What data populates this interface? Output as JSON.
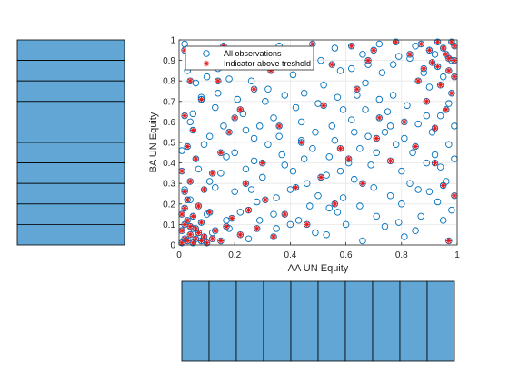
{
  "colors": {
    "observation_marker": "#0072BD",
    "indicator_marker": "#E41A1C",
    "hist_bar_fill": "#62A6D5",
    "hist_bar_edge": "#000000",
    "grid": "#E6E6E6",
    "axis": "#262626"
  },
  "chart_data": [
    {
      "type": "scatter",
      "xlabel": "AA UN Equity",
      "ylabel": "BA UN Equity",
      "xlim": [
        0,
        1
      ],
      "ylim": [
        0,
        1
      ],
      "xticks": [
        "0",
        "0.2",
        "0.4",
        "0.6",
        "0.8",
        "1"
      ],
      "yticks": [
        "0",
        "0.1",
        "0.2",
        "0.3",
        "0.4",
        "0.5",
        "0.6",
        "0.7",
        "0.8",
        "0.9",
        "1"
      ],
      "grid": true,
      "legend_position": "top-left",
      "series": [
        {
          "name": "All observations",
          "marker": "circle",
          "points": [
            [
              0.02,
              0.98
            ],
            [
              0.05,
              0.64
            ],
            [
              0.08,
              0.72
            ],
            [
              0.11,
              0.31
            ],
            [
              0.14,
              0.86
            ],
            [
              0.17,
              0.12
            ],
            [
              0.2,
              0.45
            ],
            [
              0.23,
              0.92
            ],
            [
              0.26,
              0.27
            ],
            [
              0.29,
              0.58
            ],
            [
              0.32,
              0.76
            ],
            [
              0.35,
              0.08
            ],
            [
              0.38,
              0.39
            ],
            [
              0.41,
              0.83
            ],
            [
              0.44,
              0.51
            ],
            [
              0.47,
              0.19
            ],
            [
              0.5,
              0.69
            ],
            [
              0.53,
              0.34
            ],
            [
              0.56,
              0.96
            ],
            [
              0.59,
              0.23
            ],
            [
              0.62,
              0.61
            ],
            [
              0.65,
              0.47
            ],
            [
              0.68,
              0.88
            ],
            [
              0.71,
              0.14
            ],
            [
              0.74,
              0.55
            ],
            [
              0.77,
              0.73
            ],
            [
              0.8,
              0.36
            ],
            [
              0.83,
              0.91
            ],
            [
              0.86,
              0.27
            ],
            [
              0.89,
              0.63
            ],
            [
              0.92,
              0.44
            ],
            [
              0.95,
              0.82
            ],
            [
              0.98,
              0.17
            ],
            [
              0.04,
              0.22
            ],
            [
              0.09,
              0.49
            ],
            [
              0.13,
              0.67
            ],
            [
              0.18,
              0.81
            ],
            [
              0.22,
              0.16
            ],
            [
              0.27,
              0.41
            ],
            [
              0.31,
              0.95
            ],
            [
              0.36,
              0.53
            ],
            [
              0.4,
              0.27
            ],
            [
              0.45,
              0.74
            ],
            [
              0.49,
              0.06
            ],
            [
              0.54,
              0.43
            ],
            [
              0.58,
              0.85
            ],
            [
              0.63,
              0.32
            ],
            [
              0.67,
              0.66
            ],
            [
              0.72,
              0.98
            ],
            [
              0.76,
              0.24
            ],
            [
              0.81,
              0.52
            ],
            [
              0.85,
              0.07
            ],
            [
              0.9,
              0.77
            ],
            [
              0.94,
              0.38
            ],
            [
              0.99,
              0.58
            ],
            [
              0.03,
              0.85
            ],
            [
              0.07,
              0.37
            ],
            [
              0.12,
              0.06
            ],
            [
              0.16,
              0.58
            ],
            [
              0.21,
              0.71
            ],
            [
              0.25,
              0.03
            ],
            [
              0.3,
              0.33
            ],
            [
              0.34,
              0.62
            ],
            [
              0.39,
              0.89
            ],
            [
              0.43,
              0.12
            ],
            [
              0.48,
              0.47
            ],
            [
              0.52,
              0.78
            ],
            [
              0.57,
              0.16
            ],
            [
              0.61,
              0.4
            ],
            [
              0.66,
              0.93
            ],
            [
              0.7,
              0.28
            ],
            [
              0.75,
              0.65
            ],
            [
              0.79,
              0.11
            ],
            [
              0.84,
              0.45
            ],
            [
              0.88,
              0.84
            ],
            [
              0.93,
              0.21
            ],
            [
              0.97,
              0.69
            ],
            [
              0.01,
              0.46
            ],
            [
              0.06,
              0.79
            ],
            [
              0.1,
              0.15
            ],
            [
              0.15,
              0.35
            ],
            [
              0.19,
              0.93
            ],
            [
              0.24,
              0.56
            ],
            [
              0.28,
              0.21
            ],
            [
              0.33,
              0.87
            ],
            [
              0.37,
              0.44
            ],
            [
              0.42,
              0.67
            ],
            [
              0.46,
              0.3
            ],
            [
              0.51,
              0.9
            ],
            [
              0.55,
              0.58
            ],
            [
              0.6,
              0.1
            ],
            [
              0.64,
              0.73
            ],
            [
              0.69,
              0.39
            ],
            [
              0.73,
              0.84
            ],
            [
              0.78,
              0.49
            ],
            [
              0.82,
              0.68
            ],
            [
              0.87,
              0.14
            ],
            [
              0.91,
              0.55
            ],
            [
              0.96,
              0.31
            ],
            [
              0.02,
              0.27
            ],
            [
              0.05,
              0.08
            ],
            [
              0.11,
              0.53
            ],
            [
              0.14,
              0.74
            ],
            [
              0.2,
              0.26
            ],
            [
              0.23,
              0.64
            ],
            [
              0.29,
              0.12
            ],
            [
              0.32,
              0.49
            ],
            [
              0.38,
              0.73
            ],
            [
              0.41,
              0.36
            ],
            [
              0.47,
              0.91
            ],
            [
              0.5,
              0.24
            ],
            [
              0.56,
              0.51
            ],
            [
              0.59,
              0.66
            ],
            [
              0.65,
              0.19
            ],
            [
              0.68,
              0.53
            ],
            [
              0.74,
              0.09
            ],
            [
              0.77,
              0.88
            ],
            [
              0.83,
              0.3
            ],
            [
              0.86,
              0.59
            ],
            [
              0.92,
              0.93
            ],
            [
              0.95,
              0.12
            ],
            [
              0.99,
              0.42
            ],
            [
              0.08,
              0.95
            ],
            [
              0.17,
              0.43
            ],
            [
              0.26,
              0.8
            ],
            [
              0.35,
              0.23
            ],
            [
              0.44,
              0.6
            ],
            [
              0.53,
              0.05
            ],
            [
              0.62,
              0.86
            ],
            [
              0.71,
              0.45
            ],
            [
              0.8,
              0.2
            ],
            [
              0.89,
              0.4
            ],
            [
              0.98,
              0.9
            ],
            [
              0.13,
              0.28
            ],
            [
              0.22,
              0.89
            ],
            [
              0.31,
              0.7
            ],
            [
              0.4,
              0.1
            ],
            [
              0.49,
              0.55
            ],
            [
              0.58,
              0.36
            ],
            [
              0.67,
              0.79
            ],
            [
              0.76,
              0.58
            ],
            [
              0.85,
              0.97
            ],
            [
              0.94,
              0.63
            ],
            [
              0.04,
              0.6
            ],
            [
              0.18,
              0.08
            ],
            [
              0.27,
              0.52
            ],
            [
              0.36,
              0.97
            ],
            [
              0.45,
              0.42
            ],
            [
              0.54,
              0.18
            ],
            [
              0.63,
              0.55
            ],
            [
              0.72,
              0.71
            ],
            [
              0.81,
              0.04
            ],
            [
              0.9,
              0.26
            ],
            [
              0.97,
              0.49
            ],
            [
              0.1,
              0.82
            ],
            [
              0.34,
              0.15
            ],
            [
              0.57,
              0.72
            ],
            [
              0.79,
              0.92
            ],
            [
              0.24,
              0.37
            ],
            [
              0.66,
              0.02
            ]
          ]
        },
        {
          "name": "Indicator above treshold",
          "marker": "asterisk",
          "points": [
            [
              0.01,
              0.01
            ],
            [
              0.02,
              0.03
            ],
            [
              0.03,
              0.02
            ],
            [
              0.04,
              0.05
            ],
            [
              0.05,
              0.01
            ],
            [
              0.01,
              0.07
            ],
            [
              0.02,
              0.1
            ],
            [
              0.06,
              0.03
            ],
            [
              0.03,
              0.12
            ],
            [
              0.07,
              0.06
            ],
            [
              0.08,
              0.02
            ],
            [
              0.01,
              0.15
            ],
            [
              0.04,
              0.09
            ],
            [
              0.09,
              0.04
            ],
            [
              0.02,
              0.18
            ],
            [
              0.06,
              0.08
            ],
            [
              0.1,
              0.01
            ],
            [
              0.05,
              0.14
            ],
            [
              0.12,
              0.03
            ],
            [
              0.03,
              0.22
            ],
            [
              0.08,
              0.11
            ],
            [
              0.13,
              0.07
            ],
            [
              0.02,
              0.26
            ],
            [
              0.11,
              0.16
            ],
            [
              0.15,
              0.02
            ],
            [
              0.04,
              0.31
            ],
            [
              0.07,
              0.19
            ],
            [
              0.17,
              0.09
            ],
            [
              0.01,
              0.36
            ],
            [
              0.19,
              0.13
            ],
            [
              0.06,
              0.42
            ],
            [
              0.22,
              0.05
            ],
            [
              0.09,
              0.27
            ],
            [
              0.25,
              0.17
            ],
            [
              0.03,
              0.48
            ],
            [
              0.28,
              0.08
            ],
            [
              0.12,
              0.35
            ],
            [
              0.31,
              0.22
            ],
            [
              0.05,
              0.56
            ],
            [
              0.34,
              0.04
            ],
            [
              0.15,
              0.45
            ],
            [
              0.38,
              0.15
            ],
            [
              0.02,
              0.63
            ],
            [
              0.42,
              0.28
            ],
            [
              0.18,
              0.55
            ],
            [
              0.46,
              0.1
            ],
            [
              0.08,
              0.71
            ],
            [
              0.51,
              0.33
            ],
            [
              0.22,
              0.66
            ],
            [
              0.56,
              0.2
            ],
            [
              0.04,
              0.8
            ],
            [
              0.61,
              0.42
            ],
            [
              0.27,
              0.76
            ],
            [
              0.66,
              0.3
            ],
            [
              0.11,
              0.88
            ],
            [
              0.71,
              0.52
            ],
            [
              0.33,
              0.85
            ],
            [
              0.76,
              0.41
            ],
            [
              0.02,
              0.95
            ],
            [
              0.81,
              0.6
            ],
            [
              0.4,
              0.93
            ],
            [
              0.85,
              0.48
            ],
            [
              0.16,
              0.97
            ],
            [
              0.89,
              0.7
            ],
            [
              0.48,
              0.98
            ],
            [
              0.92,
              0.57
            ],
            [
              0.62,
              0.97
            ],
            [
              0.94,
              0.78
            ],
            [
              0.7,
              0.95
            ],
            [
              0.96,
              0.66
            ],
            [
              0.78,
              0.99
            ],
            [
              0.97,
              0.85
            ],
            [
              0.83,
              0.93
            ],
            [
              0.98,
              0.74
            ],
            [
              0.87,
              0.98
            ],
            [
              0.99,
              0.9
            ],
            [
              0.9,
              0.95
            ],
            [
              0.96,
              0.93
            ],
            [
              0.93,
              0.99
            ],
            [
              0.99,
              0.97
            ],
            [
              0.95,
              0.96
            ],
            [
              0.98,
              0.99
            ],
            [
              0.97,
              0.91
            ],
            [
              0.91,
              0.89
            ],
            [
              0.88,
              0.86
            ],
            [
              0.99,
              0.82
            ],
            [
              0.86,
              0.8
            ],
            [
              0.93,
              0.87
            ],
            [
              0.97,
              0.02
            ],
            [
              0.99,
              0.24
            ],
            [
              0.92,
              0.4
            ],
            [
              0.95,
              0.29
            ],
            [
              0.2,
              0.62
            ],
            [
              0.36,
              0.58
            ],
            [
              0.52,
              0.68
            ],
            [
              0.64,
              0.76
            ],
            [
              0.44,
              0.5
            ],
            [
              0.58,
              0.47
            ],
            [
              0.72,
              0.62
            ],
            [
              0.3,
              0.4
            ],
            [
              0.55,
              0.88
            ],
            [
              0.68,
              0.9
            ],
            [
              0.14,
              0.8
            ],
            [
              0.24,
              0.3
            ]
          ]
        }
      ]
    },
    {
      "type": "bar",
      "orientation": "horizontal",
      "values": [
        1,
        1,
        1,
        1,
        1,
        1,
        1,
        1,
        1,
        1
      ]
    },
    {
      "type": "bar",
      "orientation": "vertical",
      "values": [
        1,
        1,
        1,
        1,
        1,
        1,
        1,
        1,
        1,
        1
      ]
    }
  ]
}
